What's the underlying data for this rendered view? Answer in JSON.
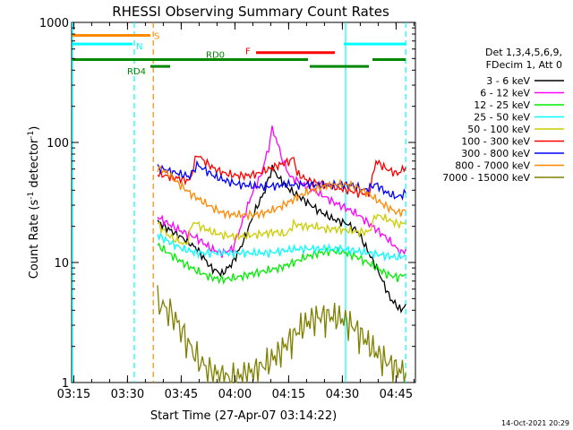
{
  "chart_data": {
    "type": "line",
    "title": "RHESSI Observing Summary Count Rates",
    "xlabel": "Start Time (27-Apr-07 03:14:22)",
    "ylabel_main": "Count Rate (s",
    "ylabel_sup1": "-1",
    "ylabel_mid": " detector",
    "ylabel_sup2": "-1",
    "ylabel_end": ")",
    "yscale": "log",
    "xlim_minutes": [
      0,
      96
    ],
    "ylim": [
      1,
      1000
    ],
    "x_ticks": [
      {
        "label": "03:15",
        "t": 0.6
      },
      {
        "label": "03:30",
        "t": 15.6
      },
      {
        "label": "03:45",
        "t": 30.6
      },
      {
        "label": "04:00",
        "t": 45.6
      },
      {
        "label": "04:15",
        "t": 60.6
      },
      {
        "label": "04:30",
        "t": 75.6
      },
      {
        "label": "04:45",
        "t": 90.6
      }
    ],
    "y_ticks": [
      {
        "label": "1",
        "v": 1
      },
      {
        "label": "10",
        "v": 10
      },
      {
        "label": "100",
        "v": 100
      },
      {
        "label": "1000",
        "v": 1000
      }
    ],
    "legend_header": [
      "Det 1,3,4,5,6,9,",
      "FDecim 1, Att 0"
    ],
    "series": [
      {
        "name": "3 - 6 keV",
        "color": "#000000",
        "points": [
          [
            24,
            22
          ],
          [
            27,
            19
          ],
          [
            31,
            16
          ],
          [
            35,
            13
          ],
          [
            39,
            9
          ],
          [
            42,
            8
          ],
          [
            45,
            10
          ],
          [
            48,
            15
          ],
          [
            51,
            26
          ],
          [
            54,
            40
          ],
          [
            56,
            62
          ],
          [
            58,
            50
          ],
          [
            61,
            40
          ],
          [
            65,
            33
          ],
          [
            69,
            27
          ],
          [
            73,
            23
          ],
          [
            77,
            21
          ],
          [
            80,
            18
          ],
          [
            83,
            12
          ],
          [
            86,
            8
          ],
          [
            89,
            5
          ],
          [
            92,
            4
          ],
          [
            93.3,
            4.5
          ]
        ]
      },
      {
        "name": "6 - 12 keV",
        "color": "#ff00ff",
        "points": [
          [
            24,
            24
          ],
          [
            27,
            21
          ],
          [
            31,
            18
          ],
          [
            35,
            16
          ],
          [
            39,
            13
          ],
          [
            42,
            12
          ],
          [
            45,
            13
          ],
          [
            47,
            19
          ],
          [
            50,
            35
          ],
          [
            53,
            55
          ],
          [
            55,
            90
          ],
          [
            56,
            130
          ],
          [
            57,
            110
          ],
          [
            59,
            70
          ],
          [
            61,
            52
          ],
          [
            65,
            44
          ],
          [
            69,
            38
          ],
          [
            73,
            32
          ],
          [
            77,
            28
          ],
          [
            80,
            25
          ],
          [
            84,
            20
          ],
          [
            88,
            16
          ],
          [
            92,
            12
          ],
          [
            93.3,
            13
          ]
        ]
      },
      {
        "name": "12 - 25 keV",
        "color": "#00ee00",
        "points": [
          [
            24,
            14
          ],
          [
            27,
            12
          ],
          [
            31,
            10
          ],
          [
            35,
            8.5
          ],
          [
            39,
            7.5
          ],
          [
            42,
            7.2
          ],
          [
            46,
            7.5
          ],
          [
            50,
            8
          ],
          [
            54,
            8.5
          ],
          [
            58,
            9
          ],
          [
            62,
            10
          ],
          [
            65,
            11
          ],
          [
            69,
            12
          ],
          [
            73,
            12.5
          ],
          [
            77,
            12
          ],
          [
            80,
            11
          ],
          [
            84,
            9.5
          ],
          [
            88,
            8
          ],
          [
            91,
            7.5
          ],
          [
            93.3,
            8
          ]
        ]
      },
      {
        "name": "25 - 50 keV",
        "color": "#00ffff",
        "points": [
          [
            24,
            17
          ],
          [
            27,
            15
          ],
          [
            31,
            13
          ],
          [
            35,
            12
          ],
          [
            39,
            12
          ],
          [
            43,
            12
          ],
          [
            47,
            12
          ],
          [
            51,
            12
          ],
          [
            55,
            12
          ],
          [
            59,
            12.5
          ],
          [
            63,
            13
          ],
          [
            67,
            13
          ],
          [
            71,
            13
          ],
          [
            75,
            13
          ],
          [
            79,
            12.5
          ],
          [
            83,
            12
          ],
          [
            87,
            11.5
          ],
          [
            91,
            11
          ],
          [
            93.3,
            11.5
          ]
        ]
      },
      {
        "name": "50 - 100 keV",
        "color": "#cccc00",
        "points": [
          [
            24,
            21
          ],
          [
            26,
            18
          ],
          [
            28,
            16
          ],
          [
            30,
            15
          ],
          [
            32,
            14
          ],
          [
            34,
            22
          ],
          [
            36,
            20
          ],
          [
            39,
            18
          ],
          [
            42,
            17
          ],
          [
            45,
            16.5
          ],
          [
            48,
            16.5
          ],
          [
            51,
            17
          ],
          [
            54,
            17.5
          ],
          [
            57,
            18
          ],
          [
            60,
            17
          ],
          [
            62,
            21
          ],
          [
            65,
            20
          ],
          [
            68,
            20
          ],
          [
            71,
            19
          ],
          [
            74,
            19
          ],
          [
            77,
            18.5
          ],
          [
            80,
            18
          ],
          [
            83,
            18
          ],
          [
            85,
            25
          ],
          [
            88,
            23
          ],
          [
            91,
            21
          ],
          [
            93.3,
            21
          ]
        ]
      },
      {
        "name": "100 - 300 keV",
        "color": "#ff0000",
        "points": [
          [
            24,
            55
          ],
          [
            27,
            52
          ],
          [
            30,
            50
          ],
          [
            33,
            48
          ],
          [
            35,
            80
          ],
          [
            37,
            70
          ],
          [
            40,
            60
          ],
          [
            43,
            55
          ],
          [
            46,
            53
          ],
          [
            49,
            53
          ],
          [
            52,
            55
          ],
          [
            55,
            60
          ],
          [
            58,
            65
          ],
          [
            61,
            70
          ],
          [
            62,
            75
          ],
          [
            63,
            55
          ],
          [
            66,
            48
          ],
          [
            70,
            45
          ],
          [
            74,
            42
          ],
          [
            77,
            40
          ],
          [
            80,
            38
          ],
          [
            83,
            37
          ],
          [
            85,
            70
          ],
          [
            88,
            60
          ],
          [
            91,
            55
          ],
          [
            93.3,
            62
          ]
        ]
      },
      {
        "name": "300 - 800 keV",
        "color": "#0000ff",
        "points": [
          [
            24,
            62
          ],
          [
            27,
            58
          ],
          [
            30,
            55
          ],
          [
            33,
            52
          ],
          [
            35,
            65
          ],
          [
            37,
            60
          ],
          [
            40,
            52
          ],
          [
            43,
            48
          ],
          [
            46,
            45
          ],
          [
            49,
            44
          ],
          [
            52,
            43
          ],
          [
            55,
            43
          ],
          [
            58,
            44
          ],
          [
            61,
            45
          ],
          [
            63,
            44
          ],
          [
            66,
            45
          ],
          [
            69,
            44
          ],
          [
            72,
            44
          ],
          [
            75,
            45
          ],
          [
            78,
            44
          ],
          [
            80,
            42
          ],
          [
            82,
            40
          ],
          [
            85,
            45
          ],
          [
            88,
            38
          ],
          [
            91,
            35
          ],
          [
            93.3,
            38
          ]
        ]
      },
      {
        "name": "800 - 7000 keV",
        "color": "#ff8800",
        "points": [
          [
            24,
            62
          ],
          [
            27,
            55
          ],
          [
            30,
            45
          ],
          [
            33,
            38
          ],
          [
            36,
            33
          ],
          [
            39,
            29
          ],
          [
            42,
            26
          ],
          [
            45,
            25
          ],
          [
            48,
            25
          ],
          [
            51,
            25
          ],
          [
            54,
            26
          ],
          [
            57,
            28
          ],
          [
            60,
            31
          ],
          [
            63,
            35
          ],
          [
            66,
            39
          ],
          [
            69,
            42
          ],
          [
            72,
            44
          ],
          [
            75,
            45
          ],
          [
            78,
            44
          ],
          [
            80,
            42
          ],
          [
            83,
            37
          ],
          [
            86,
            32
          ],
          [
            89,
            28
          ],
          [
            91,
            26
          ],
          [
            93.3,
            27
          ]
        ]
      },
      {
        "name": "7000 - 15000 keV",
        "color": "#808000",
        "points": [
          [
            24,
            4.8
          ],
          [
            26,
            4.2
          ],
          [
            28,
            3.8
          ],
          [
            30,
            3
          ],
          [
            32,
            2.3
          ],
          [
            34,
            1.8
          ],
          [
            36,
            1.5
          ],
          [
            38,
            1.3
          ],
          [
            40,
            1.2
          ],
          [
            43,
            1.1
          ],
          [
            46,
            1.1
          ],
          [
            49,
            1.2
          ],
          [
            52,
            1.3
          ],
          [
            55,
            1.5
          ],
          [
            58,
            1.8
          ],
          [
            61,
            2.3
          ],
          [
            64,
            2.9
          ],
          [
            67,
            3.4
          ],
          [
            70,
            3.6
          ],
          [
            73,
            3.6
          ],
          [
            76,
            3.4
          ],
          [
            79,
            2.9
          ],
          [
            82,
            2.3
          ],
          [
            85,
            1.8
          ],
          [
            88,
            1.5
          ],
          [
            91,
            1.3
          ],
          [
            93.3,
            1.2
          ]
        ]
      }
    ],
    "state_bars": [
      {
        "label": "S",
        "color": "#ff8800",
        "v": 780,
        "segments": [
          [
            0.2,
            22
          ]
        ]
      },
      {
        "label": "N",
        "color": "#00ffff",
        "v": 660,
        "segments": [
          [
            0.2,
            17
          ],
          [
            76,
            93.3
          ]
        ]
      },
      {
        "label": "F",
        "color": "#ff0000",
        "v": 560,
        "segments": [
          [
            51.5,
            73.5
          ]
        ]
      },
      {
        "label": "RD0",
        "color": "#008800",
        "v": 490,
        "segments": [
          [
            0.2,
            37
          ],
          [
            35,
            66
          ],
          [
            84,
            93.3
          ]
        ]
      },
      {
        "label": "RD4",
        "color": "#008800",
        "v": 430,
        "segments": [
          [
            22,
            27.5
          ],
          [
            66.5,
            83
          ]
        ]
      }
    ],
    "vlines": [
      {
        "t": 0.2,
        "color": "#00ffff",
        "style": "solid"
      },
      {
        "t": 17.5,
        "color": "#00ffff",
        "style": "dashed"
      },
      {
        "t": 22.8,
        "color": "#ff8800",
        "style": "dashed"
      },
      {
        "t": 76.5,
        "color": "#00ffff",
        "style": "solid"
      },
      {
        "t": 93.3,
        "color": "#00ffff",
        "style": "dashed"
      }
    ]
  },
  "footer": {
    "date": "14-Oct-2021 20:29"
  }
}
